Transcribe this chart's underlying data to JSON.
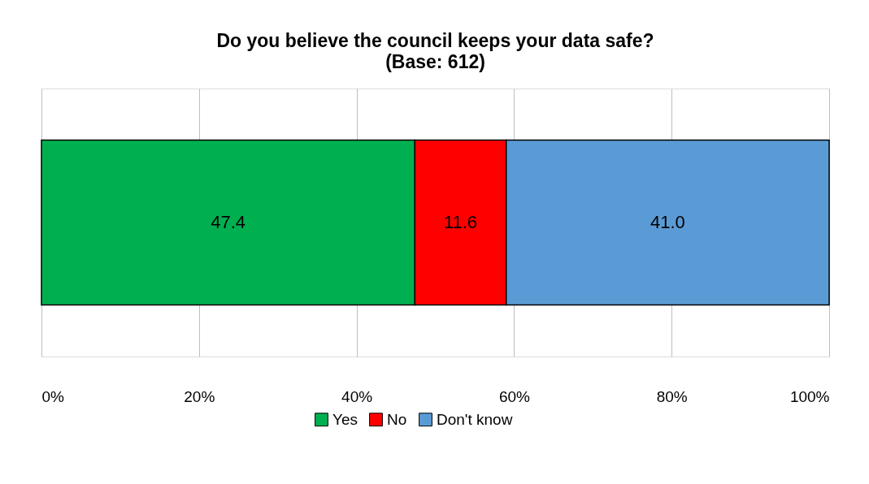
{
  "chart_data": {
    "type": "bar",
    "orientation": "horizontal",
    "stacked": true,
    "title": "Do you believe the council keeps your data safe?",
    "subtitle": "(Base: 612)",
    "categories": [
      null
    ],
    "series": [
      {
        "name": "Yes",
        "color": "#00b050",
        "values": [
          47.4
        ],
        "value_labels": [
          "47.4"
        ]
      },
      {
        "name": "No",
        "color": "#ff0000",
        "values": [
          11.6
        ],
        "value_labels": [
          "11.6"
        ]
      },
      {
        "name": "Don't know",
        "color": "#5b9bd5",
        "values": [
          41.0
        ],
        "value_labels": [
          "41.0"
        ]
      }
    ],
    "xlim": [
      0,
      100
    ],
    "xticks": [
      {
        "value": 0,
        "label": "0%"
      },
      {
        "value": 20,
        "label": "20%"
      },
      {
        "value": 40,
        "label": "40%"
      },
      {
        "value": 60,
        "label": "60%"
      },
      {
        "value": 80,
        "label": "80%"
      },
      {
        "value": 100,
        "label": "100%"
      }
    ],
    "grid": "x",
    "legend": "bottom"
  }
}
